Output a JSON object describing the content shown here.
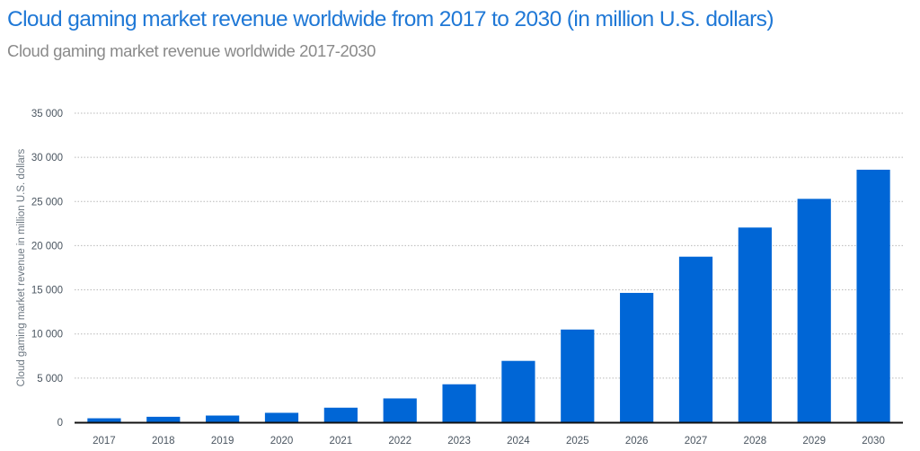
{
  "header": {
    "title": "Cloud gaming market revenue worldwide from 2017 to 2030 (in million U.S. dollars)",
    "subtitle": "Cloud gaming market revenue worldwide 2017-2030"
  },
  "colors": {
    "bar": "#0066d6",
    "title": "#1f78d6",
    "subtitle": "#8a8a8a",
    "grid": "#b8b8b8",
    "axis": "#111111"
  },
  "chart_data": {
    "type": "bar",
    "title": "Cloud gaming market revenue worldwide from 2017 to 2030 (in million U.S. dollars)",
    "subtitle": "Cloud gaming market revenue worldwide 2017-2030",
    "xlabel": "",
    "ylabel": "Cloud gaming market revenue in million U.S. dollars",
    "categories": [
      "2017",
      "2018",
      "2019",
      "2020",
      "2021",
      "2022",
      "2023",
      "2024",
      "2025",
      "2026",
      "2027",
      "2028",
      "2029",
      "2030"
    ],
    "values": [
      450,
      620,
      760,
      1070,
      1650,
      2700,
      4300,
      6950,
      10500,
      14650,
      18750,
      22050,
      25300,
      28600
    ],
    "ylim": [
      0,
      35000
    ],
    "yticks": [
      0,
      5000,
      10000,
      15000,
      20000,
      25000,
      30000,
      35000
    ],
    "ytick_labels": [
      "0",
      "5 000",
      "10 000",
      "15 000",
      "20 000",
      "25 000",
      "30 000",
      "35 000"
    ],
    "grid": true,
    "grid_style": "dotted",
    "legend": "none"
  }
}
